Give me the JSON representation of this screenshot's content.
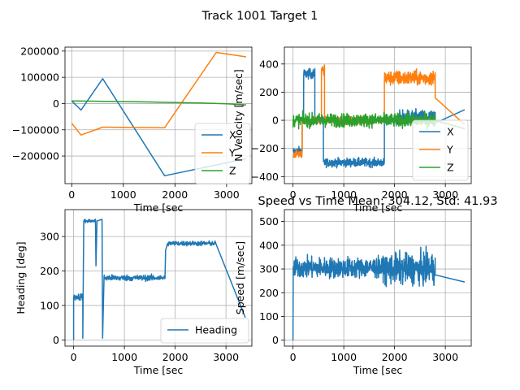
{
  "title": "Track 1001 Target 1",
  "colors": {
    "blue": "#1f77b4",
    "orange": "#ff7f0e",
    "green": "#2ca02c"
  },
  "chart_data": [
    {
      "id": "position",
      "type": "line",
      "title": "",
      "xlabel": "Time [sec",
      "ylabel": "",
      "xlim": [
        -130,
        3490
      ],
      "ylim": [
        -305000,
        215000
      ],
      "xticks": [
        0,
        1000,
        2000,
        3000
      ],
      "yticks": [
        -200000,
        -100000,
        0,
        100000,
        200000
      ],
      "ytick_labels": [
        "−200000",
        "−100000",
        "0",
        "100000",
        "200000"
      ],
      "grid": true,
      "legend": "right",
      "series": [
        {
          "name": "X",
          "color": "#1f77b4",
          "x": [
            0,
            180,
            600,
            1800,
            3380
          ],
          "y": [
            10000,
            -25000,
            95000,
            -275000,
            -210000
          ]
        },
        {
          "name": "Y",
          "color": "#ff7f0e",
          "x": [
            0,
            180,
            600,
            1800,
            2800,
            3380
          ],
          "y": [
            -75000,
            -120000,
            -90000,
            -92000,
            195000,
            178000
          ]
        },
        {
          "name": "Z",
          "color": "#2ca02c",
          "x": [
            0,
            500,
            1000,
            1500,
            2000,
            2500,
            3000,
            3380
          ],
          "y": [
            10000,
            9000,
            7500,
            6000,
            4000,
            2000,
            -1000,
            -5000
          ]
        }
      ]
    },
    {
      "id": "velocity",
      "type": "line",
      "title": "",
      "xlabel": "Time [sec",
      "ylabel": "N Velocity [m/sec]",
      "xlim": [
        -170,
        3510
      ],
      "ylim": [
        -450,
        520
      ],
      "xticks": [
        0,
        1000,
        2000,
        3000
      ],
      "yticks": [
        -400,
        -200,
        0,
        200,
        400
      ],
      "ytick_labels": [
        "−400",
        "−200",
        "0",
        "200",
        "400"
      ],
      "grid": true,
      "legend": "lower right",
      "series": [
        {
          "name": "X",
          "color": "#1f77b4",
          "segments": [
            [
              0,
              180,
              -220,
              35
            ],
            [
              180,
              210,
              0,
              30
            ],
            [
              210,
              430,
              330,
              40
            ],
            [
              430,
              600,
              0,
              30
            ],
            [
              600,
              1800,
              -300,
              35
            ],
            [
              1800,
              2100,
              0,
              40
            ],
            [
              2100,
              2800,
              20,
              60
            ]
          ],
          "tail": [
            [
              2800,
              -20
            ],
            [
              3380,
              75
            ]
          ]
        },
        {
          "name": "Y",
          "color": "#ff7f0e",
          "segments": [
            [
              0,
              180,
              -240,
              30
            ],
            [
              180,
              560,
              0,
              35
            ],
            [
              560,
              620,
              360,
              40
            ],
            [
              620,
              1800,
              0,
              30
            ],
            [
              1800,
              2800,
              300,
              60
            ]
          ],
          "tail": [
            [
              2800,
              160
            ],
            [
              3380,
              -30
            ]
          ]
        },
        {
          "name": "Z",
          "color": "#2ca02c",
          "segments": [
            [
              0,
              2800,
              0,
              55
            ]
          ],
          "tail": [
            [
              2800,
              0
            ],
            [
              3380,
              -60
            ]
          ]
        }
      ]
    },
    {
      "id": "heading",
      "type": "line",
      "title": "",
      "xlabel": "Time [sec",
      "ylabel": "Heading [deg]",
      "xlim": [
        -170,
        3510
      ],
      "ylim": [
        -18,
        378
      ],
      "xticks": [
        0,
        1000,
        2000,
        3000
      ],
      "yticks": [
        0,
        100,
        200,
        300
      ],
      "grid": true,
      "legend": "lower right",
      "series": [
        {
          "name": "Heading",
          "color": "#1f77b4",
          "points": [
            [
              0,
              0
            ],
            [
              0,
              120
            ],
            [
              180,
              130
            ],
            [
              180,
              5
            ],
            [
              200,
              345
            ],
            [
              430,
              350
            ],
            [
              440,
              215
            ],
            [
              460,
              345
            ],
            [
              560,
              350
            ],
            [
              570,
              5
            ],
            [
              600,
              185
            ],
            [
              1800,
              180
            ],
            [
              1810,
              260
            ],
            [
              1850,
              280
            ],
            [
              2800,
              280
            ],
            [
              3380,
              65
            ]
          ],
          "noise": [
            [
              0,
              180,
              125,
              12
            ],
            [
              200,
              560,
              345,
              6
            ],
            [
              600,
              1800,
              180,
              10
            ],
            [
              1850,
              2800,
              280,
              8
            ]
          ]
        }
      ]
    },
    {
      "id": "speed",
      "type": "line",
      "title": "Speed vs Time Mean: 304.12, Std: 41.93",
      "xlabel": "Time [sec",
      "ylabel": "Speed [m/sec]",
      "xlim": [
        -170,
        3510
      ],
      "ylim": [
        -25,
        550
      ],
      "xticks": [
        0,
        1000,
        2000,
        3000
      ],
      "yticks": [
        0,
        100,
        200,
        300,
        400,
        500
      ],
      "grid": true,
      "legend": "none",
      "series": [
        {
          "name": "",
          "color": "#1f77b4",
          "noise": [
            [
              0,
              1800,
              305,
              50
            ],
            [
              1800,
              2800,
              300,
              75
            ]
          ],
          "tail": [
            [
              2800,
              275
            ],
            [
              3380,
              245
            ]
          ]
        }
      ]
    }
  ]
}
